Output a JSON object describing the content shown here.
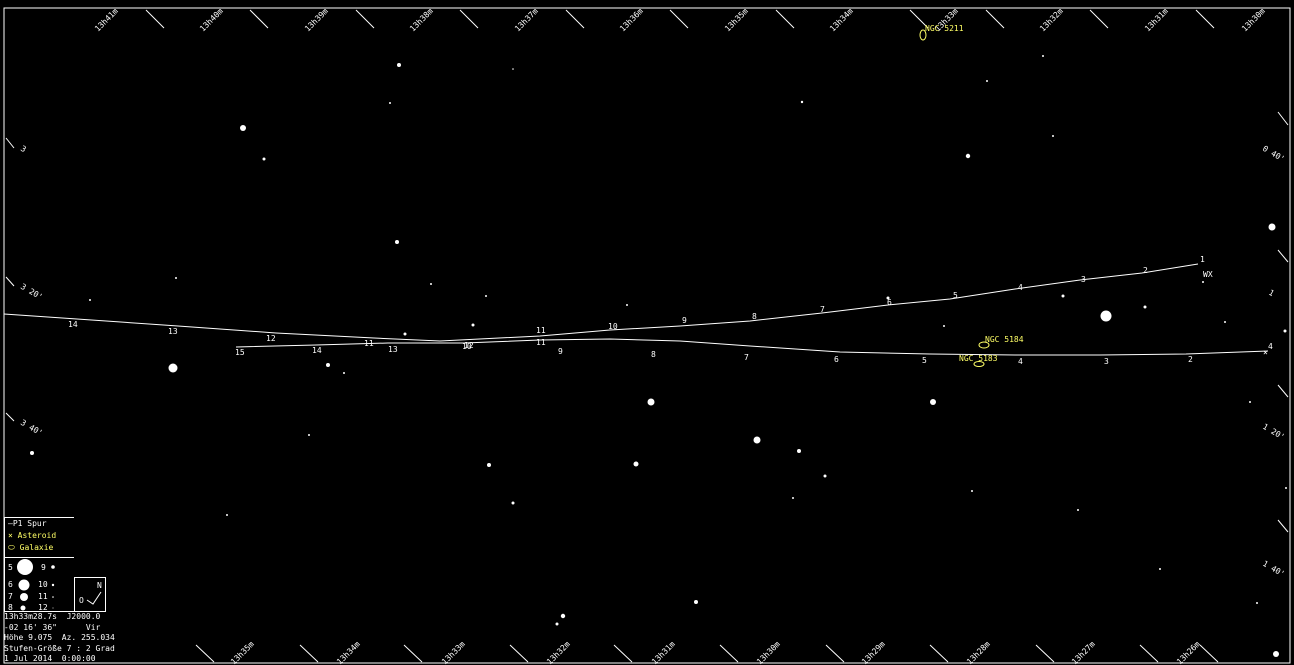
{
  "ra_labels_top": [
    "13h41m",
    "13h40m",
    "13h39m",
    "13h38m",
    "13h37m",
    "13h36m",
    "13h35m",
    "13h34m",
    "13h33m",
    "13h32m",
    "13h31m",
    "13h30m"
  ],
  "ra_labels_bottom": [
    "13h35m",
    "13h34m",
    "13h33m",
    "13h32m",
    "13h31m",
    "13h30m",
    "13h29m",
    "13h28m",
    "13h27m",
    "13h26m"
  ],
  "dec_labels_left": [
    "3",
    "3 20'",
    "3 40'"
  ],
  "dec_labels_right": [
    "0 40'",
    "1",
    "1 20'",
    "1 40'"
  ],
  "track_upper": {
    "ticks": [
      "14",
      "13",
      "12",
      "11",
      "10",
      "9",
      "8",
      "7",
      "6",
      "5",
      "4",
      "3",
      "2",
      "1"
    ],
    "alt_ticks": [
      "11",
      "10",
      "9",
      "8",
      "7",
      "6",
      "5",
      "4",
      "3",
      "2"
    ],
    "end_label": "WX"
  },
  "track_lower": {
    "ticks": [
      "15",
      "14",
      "13",
      "12",
      "11",
      "9",
      "8",
      "7",
      "6",
      "5",
      "4",
      "3",
      "2",
      "4"
    ]
  },
  "galaxies": [
    {
      "name": "NGC 5211"
    },
    {
      "name": "NGC 5184"
    },
    {
      "name": "NGC 5183"
    }
  ],
  "legend": {
    "track_label": "P1 Spur",
    "asteroid_label": "Asteroid",
    "galaxy_label": "Galaxie",
    "magnitudes": [
      "5",
      "6",
      "7",
      "8",
      "9",
      "10",
      "11",
      "12"
    ]
  },
  "orientation": {
    "north": "N",
    "west": "O"
  },
  "info": {
    "coords": "13h33m28.7s  J2000.0",
    "dec": "-02 16' 36\"      Vir",
    "altaz": "Höhe 9.075  Az. 255.034",
    "scale": "Stufen-Größe 7 : 2 Grad",
    "date": "1 Jul 2014  0:00:00"
  },
  "colors": {
    "background": "#000000",
    "stars": "#ffffff",
    "objects": "#ffff66"
  }
}
